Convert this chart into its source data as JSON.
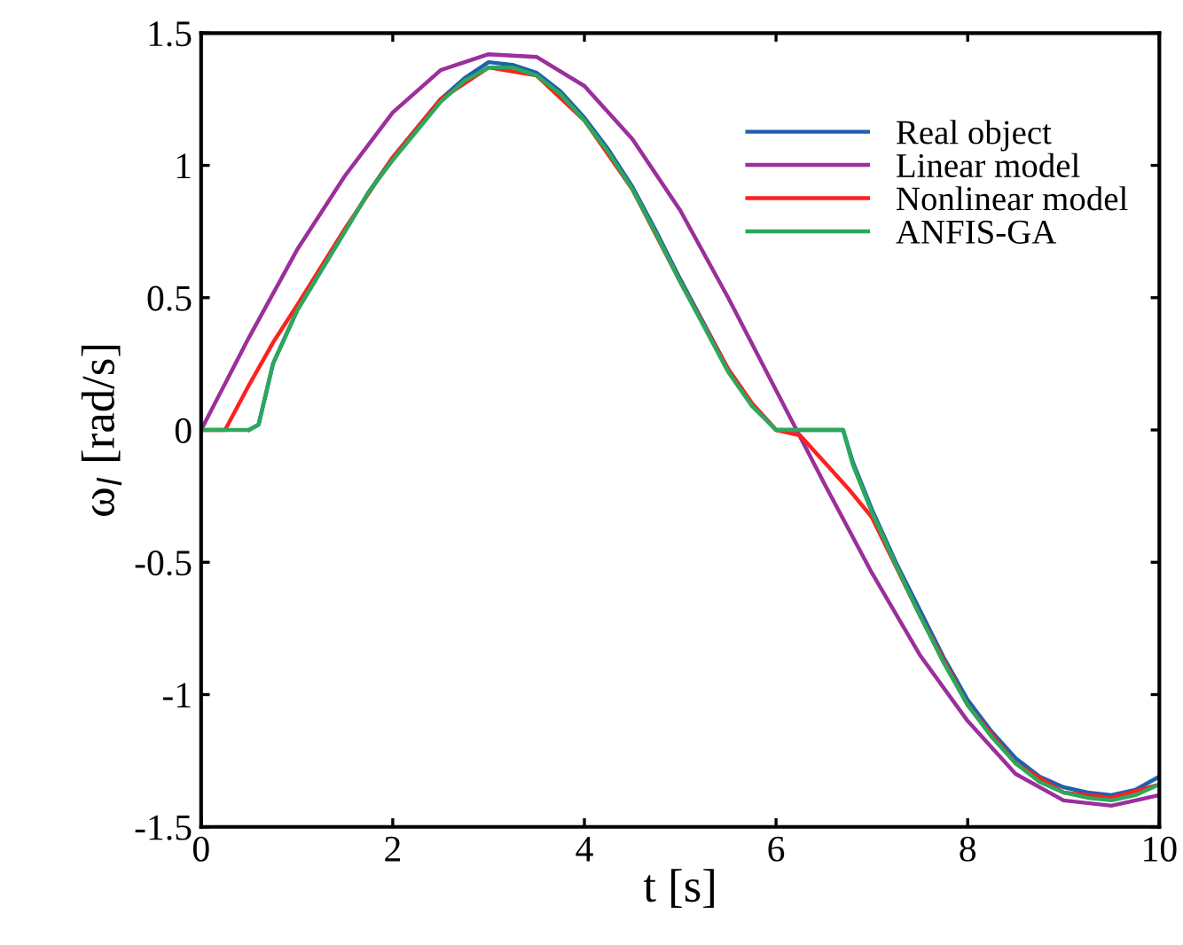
{
  "chart_data": {
    "type": "line",
    "xlabel": "t [s]",
    "ylabel": "ω$_{l}$ [rad/s]",
    "xlim": [
      0,
      10
    ],
    "ylim": [
      -1.5,
      1.5
    ],
    "xticks": [
      0,
      2,
      4,
      6,
      8,
      10
    ],
    "yticks": [
      -1.5,
      -1,
      -0.5,
      0,
      0.5,
      1,
      1.5
    ],
    "grid": false,
    "legend": "top right",
    "marker": "none",
    "line_style": "solid",
    "series": [
      {
        "name": "Real object",
        "color": "#1f5fb0",
        "x": [
          0.5,
          0.6,
          0.75,
          1.0,
          1.25,
          1.5,
          1.75,
          2.0,
          2.25,
          2.5,
          2.75,
          3.0,
          3.25,
          3.5,
          3.75,
          4.0,
          4.25,
          4.5,
          4.75,
          5.0,
          5.25,
          5.5,
          5.75,
          6.0,
          6.25,
          6.5,
          6.7,
          6.8,
          7.0,
          7.25,
          7.5,
          7.75,
          8.0,
          8.25,
          8.5,
          8.75,
          9.0,
          9.25,
          9.5,
          9.75,
          10.0
        ],
        "values": [
          0,
          0.02,
          0.25,
          0.45,
          0.6,
          0.75,
          0.9,
          1.03,
          1.14,
          1.25,
          1.33,
          1.39,
          1.38,
          1.35,
          1.28,
          1.18,
          1.06,
          0.92,
          0.75,
          0.57,
          0.4,
          0.23,
          0.1,
          0,
          0,
          0,
          0,
          -0.12,
          -0.3,
          -0.5,
          -0.68,
          -0.86,
          -1.02,
          -1.14,
          -1.24,
          -1.31,
          -1.35,
          -1.37,
          -1.38,
          -1.36,
          -1.31
        ]
      },
      {
        "name": "Linear model",
        "color": "#9b2f9b",
        "x": [
          0,
          0.5,
          1,
          1.5,
          2,
          2.5,
          3,
          3.5,
          4,
          4.5,
          5,
          5.5,
          6,
          6.5,
          7,
          7.5,
          8,
          8.5,
          9,
          9.5,
          10
        ],
        "values": [
          0,
          0.35,
          0.68,
          0.96,
          1.2,
          1.36,
          1.42,
          1.41,
          1.3,
          1.1,
          0.83,
          0.5,
          0.15,
          -0.2,
          -0.54,
          -0.85,
          -1.1,
          -1.3,
          -1.4,
          -1.42,
          -1.38
        ]
      },
      {
        "name": "Nonlinear model",
        "color": "#ff2020",
        "x": [
          0,
          0.25,
          0.5,
          0.75,
          1.0,
          1.5,
          2.0,
          2.5,
          3.0,
          3.5,
          4.0,
          4.5,
          5.0,
          5.5,
          5.75,
          6.0,
          6.25,
          6.5,
          6.75,
          7.0,
          7.5,
          8.0,
          8.5,
          9.0,
          9.5,
          10.0
        ],
        "values": [
          0,
          0,
          0.17,
          0.33,
          0.47,
          0.76,
          1.03,
          1.25,
          1.37,
          1.34,
          1.17,
          0.91,
          0.56,
          0.23,
          0.1,
          0,
          -0.02,
          -0.12,
          -0.22,
          -0.33,
          -0.7,
          -1.04,
          -1.26,
          -1.37,
          -1.39,
          -1.34
        ]
      },
      {
        "name": "ANFIS-GA",
        "color": "#2ca85a",
        "x": [
          0,
          0.25,
          0.5,
          0.6,
          0.75,
          1.0,
          1.25,
          1.5,
          1.75,
          2.0,
          2.25,
          2.5,
          2.75,
          3.0,
          3.25,
          3.5,
          3.75,
          4.0,
          4.25,
          4.5,
          4.75,
          5.0,
          5.25,
          5.5,
          5.75,
          6.0,
          6.25,
          6.5,
          6.7,
          6.8,
          7.0,
          7.25,
          7.5,
          7.75,
          8.0,
          8.25,
          8.5,
          8.75,
          9.0,
          9.25,
          9.5,
          9.75,
          10.0
        ],
        "values": [
          0,
          0,
          0,
          0.02,
          0.25,
          0.45,
          0.6,
          0.75,
          0.9,
          1.02,
          1.13,
          1.24,
          1.32,
          1.37,
          1.37,
          1.34,
          1.27,
          1.17,
          1.05,
          0.91,
          0.74,
          0.56,
          0.39,
          0.22,
          0.09,
          0,
          0,
          0,
          0,
          -0.13,
          -0.31,
          -0.51,
          -0.7,
          -0.88,
          -1.04,
          -1.16,
          -1.26,
          -1.33,
          -1.37,
          -1.39,
          -1.4,
          -1.38,
          -1.34
        ]
      }
    ]
  }
}
